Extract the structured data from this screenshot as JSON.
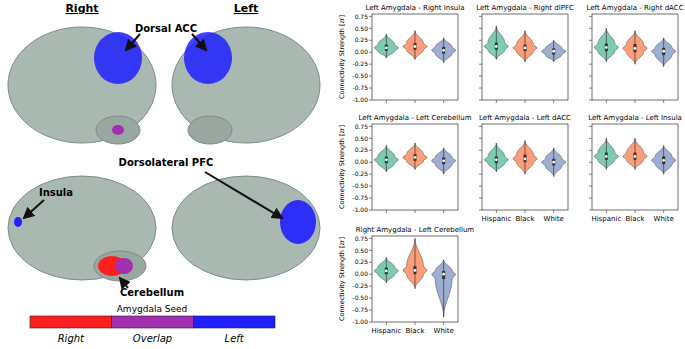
{
  "brain_panel": {
    "hemispheres": [
      "Right",
      "Left"
    ],
    "regions": [
      "Dorsal ACC",
      "Dorsolateral PFC",
      "Insula",
      "Cerebellum"
    ],
    "legend": {
      "title": "Amygdala Seed",
      "items": [
        {
          "label": "Right",
          "color": "#ff1f1f"
        },
        {
          "label": "Overlap",
          "color": "#a12fb0"
        },
        {
          "label": "Left",
          "color": "#1f1fff"
        }
      ]
    }
  },
  "chart_data": [
    {
      "type": "violin",
      "title": "Left Amygdala - Right Insula",
      "y_label": "Connectivity Strength [zr]",
      "categories": [
        "Hispanic",
        "Black",
        "White"
      ],
      "colors": [
        "#66c2a5",
        "#fc8d62",
        "#8da0cb"
      ],
      "min": [
        -0.12,
        -0.15,
        -0.22
      ],
      "q1": [
        0.03,
        0.05,
        -0.03
      ],
      "median": [
        0.09,
        0.12,
        0.04
      ],
      "q3": [
        0.16,
        0.19,
        0.11
      ],
      "max": [
        0.38,
        0.45,
        0.3
      ],
      "ylim": [
        -1.0,
        0.8
      ],
      "yticks": [
        {
          "value": -1,
          "label": "-1.00"
        },
        -0.75,
        {
          "value": -0.5,
          "label": "-0.50"
        },
        -0.25,
        {
          "value": 0,
          "label": "0.00"
        },
        0.25,
        {
          "value": 0.5,
          "label": "0.50"
        },
        0.75
      ],
      "tick_labels": "y"
    },
    {
      "type": "violin",
      "title": "Left Amygdala - Right dlPFC",
      "categories": [
        "Hispanic",
        "Black",
        "White"
      ],
      "colors": [
        "#66c2a5",
        "#fc8d62",
        "#8da0cb"
      ],
      "min": [
        -0.15,
        -0.2,
        -0.2
      ],
      "q1": [
        0.05,
        0.02,
        -0.05
      ],
      "median": [
        0.12,
        0.09,
        0.02
      ],
      "q3": [
        0.2,
        0.16,
        0.08
      ],
      "max": [
        0.55,
        0.45,
        0.25
      ],
      "ylim": [
        -1.0,
        0.8
      ],
      "yticks": [
        {
          "value": -1,
          "label": "-1.00"
        },
        -0.75,
        {
          "value": -0.5,
          "label": "-0.50"
        },
        -0.25,
        {
          "value": 0,
          "label": "0.00"
        },
        0.25,
        {
          "value": 0.5,
          "label": "0.50"
        },
        0.75
      ],
      "tick_labels": false
    },
    {
      "type": "violin",
      "title": "Left Amygdala - Right dACC",
      "categories": [
        "Hispanic",
        "Black",
        "White"
      ],
      "colors": [
        "#66c2a5",
        "#fc8d62",
        "#8da0cb"
      ],
      "min": [
        -0.2,
        -0.25,
        -0.3
      ],
      "q1": [
        0.02,
        0.0,
        -0.06
      ],
      "median": [
        0.1,
        0.08,
        0.02
      ],
      "q3": [
        0.18,
        0.17,
        0.09
      ],
      "max": [
        0.5,
        0.45,
        0.3
      ],
      "ylim": [
        -1.0,
        0.8
      ],
      "yticks": [
        {
          "value": -1,
          "label": "-1.00"
        },
        -0.75,
        {
          "value": -0.5,
          "label": "-0.50"
        },
        -0.25,
        {
          "value": 0,
          "label": "0.00"
        },
        0.25,
        {
          "value": 0.5,
          "label": "0.50"
        },
        0.75
      ],
      "tick_labels": false
    },
    {
      "type": "violin",
      "title": "Left Amygdala - Left Cerebellum",
      "y_label": "Connectivity Strength [zr]",
      "categories": [
        "Hispanic",
        "Black",
        "White"
      ],
      "colors": [
        "#66c2a5",
        "#fc8d62",
        "#8da0cb"
      ],
      "min": [
        -0.2,
        -0.15,
        -0.25
      ],
      "q1": [
        -0.02,
        0.03,
        -0.04
      ],
      "median": [
        0.05,
        0.1,
        0.03
      ],
      "q3": [
        0.12,
        0.17,
        0.1
      ],
      "max": [
        0.35,
        0.4,
        0.3
      ],
      "ylim": [
        -1.0,
        0.8
      ],
      "yticks": [
        {
          "value": -1,
          "label": "-1.00"
        },
        -0.75,
        {
          "value": -0.5,
          "label": "-0.50"
        },
        -0.25,
        {
          "value": 0,
          "label": "0.00"
        },
        0.25,
        {
          "value": 0.5,
          "label": "0.50"
        },
        0.75
      ],
      "tick_labels": "y"
    },
    {
      "type": "violin",
      "title": "Left Amygdala - Left dACC",
      "categories": [
        "Hispanic",
        "Black",
        "White"
      ],
      "colors": [
        "#66c2a5",
        "#fc8d62",
        "#8da0cb"
      ],
      "min": [
        -0.2,
        -0.25,
        -0.3
      ],
      "q1": [
        -0.02,
        0.0,
        -0.07
      ],
      "median": [
        0.05,
        0.07,
        0.0
      ],
      "q3": [
        0.12,
        0.16,
        0.07
      ],
      "max": [
        0.4,
        0.45,
        0.3
      ],
      "ylim": [
        -1.0,
        0.8
      ],
      "yticks": [
        {
          "value": -1,
          "label": "-1.00"
        },
        -0.75,
        {
          "value": -0.5,
          "label": "-0.50"
        },
        -0.25,
        {
          "value": 0,
          "label": "0.00"
        },
        0.25,
        {
          "value": 0.5,
          "label": "0.50"
        },
        0.75
      ],
      "tick_labels": "x"
    },
    {
      "type": "violin",
      "title": "Left Amygdala - Left Insula",
      "categories": [
        "Hispanic",
        "Black",
        "White"
      ],
      "colors": [
        "#66c2a5",
        "#fc8d62",
        "#8da0cb"
      ],
      "min": [
        -0.15,
        -0.15,
        -0.25
      ],
      "q1": [
        0.05,
        0.05,
        -0.04
      ],
      "median": [
        0.12,
        0.12,
        0.04
      ],
      "q3": [
        0.2,
        0.2,
        0.12
      ],
      "max": [
        0.5,
        0.5,
        0.35
      ],
      "ylim": [
        -1.0,
        0.8
      ],
      "yticks": [
        {
          "value": -1,
          "label": "-1.00"
        },
        -0.75,
        {
          "value": -0.5,
          "label": "-0.50"
        },
        -0.25,
        {
          "value": 0,
          "label": "0.00"
        },
        0.25,
        {
          "value": 0.5,
          "label": "0.50"
        },
        0.75
      ],
      "tick_labels": "x"
    },
    {
      "type": "violin",
      "title": "Right Amygdala - Left Cerebellum",
      "y_label": "Connectivity Strength [zr]",
      "categories": [
        "Hispanic",
        "Black",
        "White"
      ],
      "colors": [
        "#66c2a5",
        "#fc8d62",
        "#8da0cb"
      ],
      "min": [
        -0.18,
        -0.3,
        -0.9
      ],
      "q1": [
        0.0,
        0.0,
        -0.1
      ],
      "median": [
        0.07,
        0.08,
        0.0
      ],
      "q3": [
        0.14,
        0.17,
        0.07
      ],
      "max": [
        0.35,
        0.75,
        0.3
      ],
      "ylim": [
        -1.0,
        0.8
      ],
      "yticks": [
        {
          "value": -1,
          "label": "-1.00"
        },
        -0.75,
        {
          "value": -0.5,
          "label": "-0.50"
        },
        -0.25,
        {
          "value": 0,
          "label": "0.00"
        },
        0.25,
        {
          "value": 0.5,
          "label": "0.50"
        },
        0.75
      ],
      "tick_labels": true
    }
  ]
}
